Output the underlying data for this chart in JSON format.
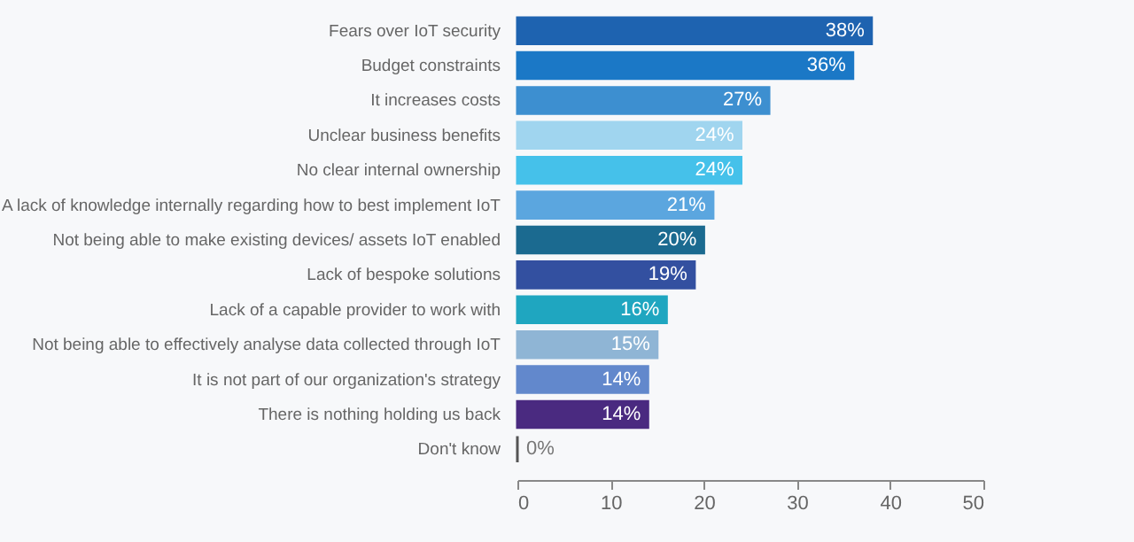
{
  "chart_data": {
    "type": "bar",
    "orientation": "horizontal",
    "categories": [
      "Fears over IoT security",
      "Budget constraints",
      "It increases costs",
      "Unclear business benefits",
      "No clear internal ownership",
      "A lack of knowledge internally regarding how to best implement IoT",
      "Not being able to make existing devices/ assets IoT enabled",
      "Lack of bespoke solutions",
      "Lack of a capable provider to work with",
      "Not being able to effectively analyse data collected through IoT",
      "It is not part of our organization's strategy",
      "There is nothing holding us back",
      "Don't know"
    ],
    "values": [
      38,
      36,
      27,
      24,
      24,
      21,
      20,
      19,
      16,
      15,
      14,
      14,
      0
    ],
    "value_labels": [
      "38%",
      "36%",
      "27%",
      "24%",
      "24%",
      "21%",
      "20%",
      "19%",
      "16%",
      "15%",
      "14%",
      "14%",
      "0%"
    ],
    "colors": [
      "#1e63b0",
      "#1b78c6",
      "#3d8fd0",
      "#a0d5ef",
      "#45c1ea",
      "#5ba6df",
      "#1b6a90",
      "#3350a0",
      "#1fa6c0",
      "#8fb5d5",
      "#6288cc",
      "#4a2a80",
      "#555555"
    ],
    "xlim": [
      0,
      50
    ],
    "xticks": [
      0,
      10,
      20,
      30,
      40,
      50
    ]
  }
}
